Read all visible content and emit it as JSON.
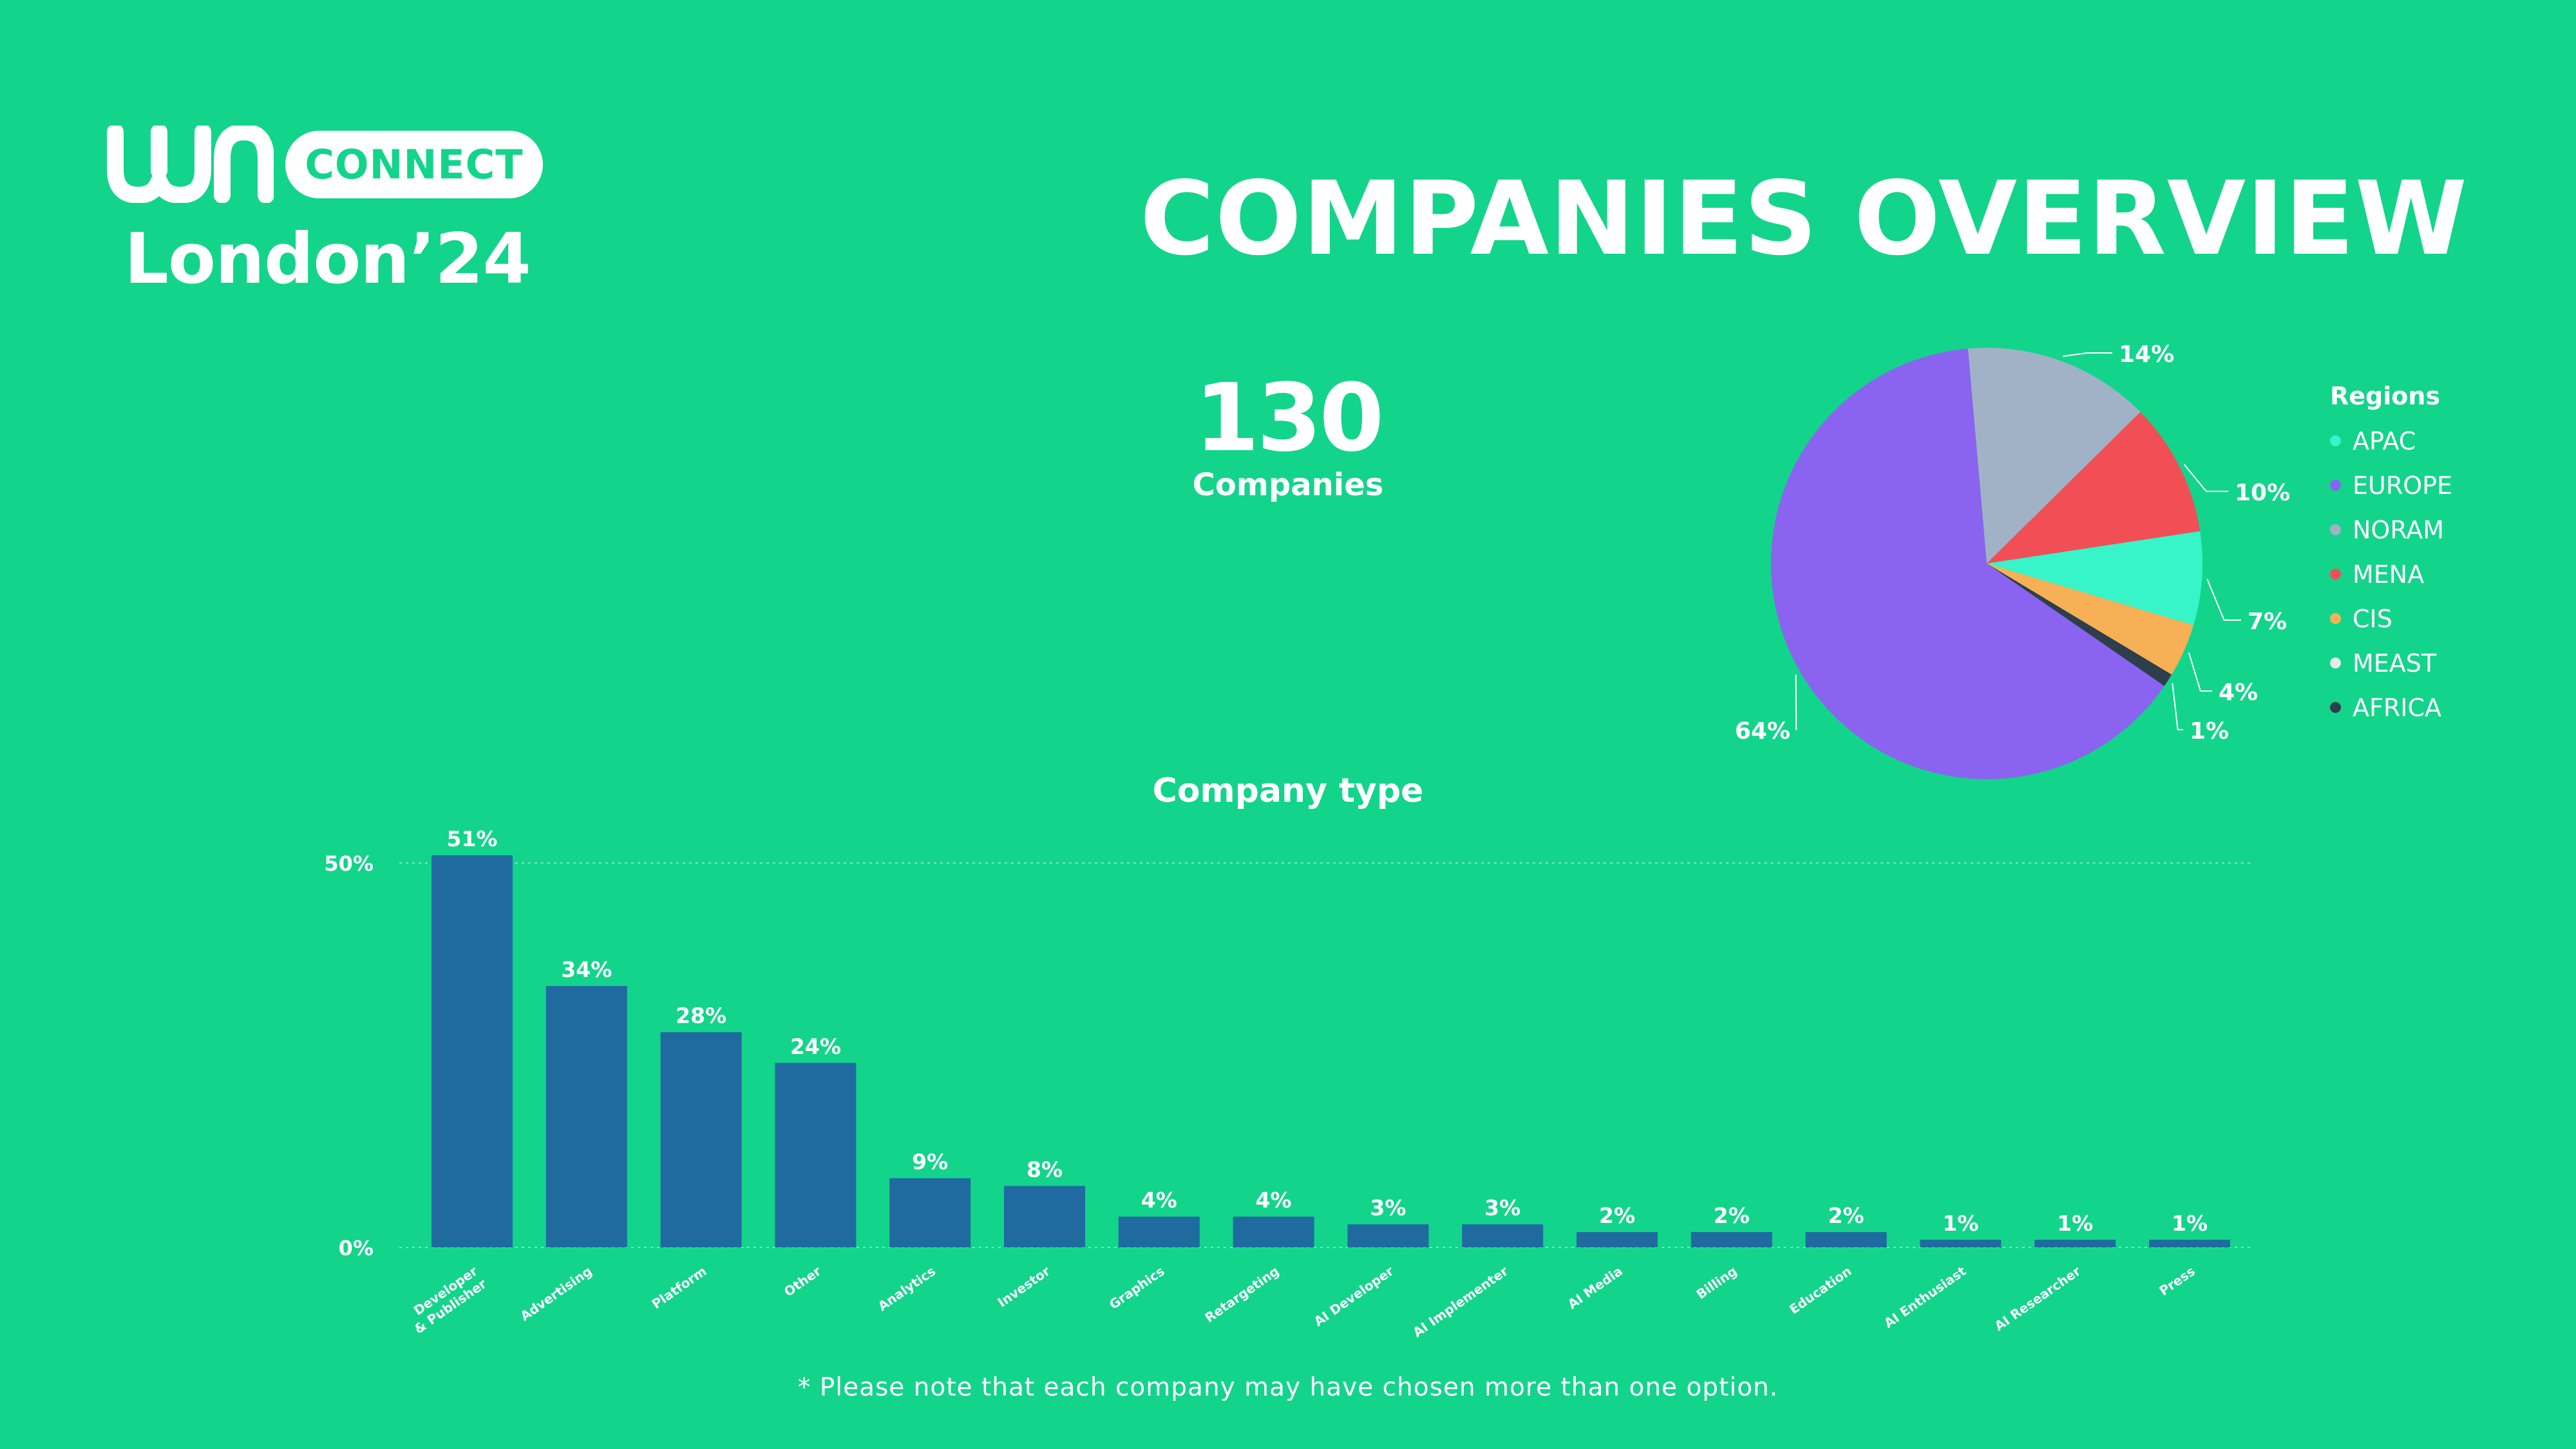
{
  "brand": {
    "logo_text": "WN",
    "pill_label": "CONNECT",
    "subtitle": "London’24"
  },
  "header": {
    "title": "COMPANIES OVERVIEW"
  },
  "kpi": {
    "value": "130",
    "label": "Companies"
  },
  "footnote": "* Please note that each company may have chosen more than one option.",
  "colors": {
    "background": "#13D48B",
    "bar": "#1F6BA0",
    "APAC": "#37F5C8",
    "EUROPE": "#8A63F0",
    "NORAM": "#A1B2C7",
    "MENA": "#F24E56",
    "CIS": "#F7B055",
    "MEAST": "#E6EBEE",
    "AFRICA": "#2E3E4C"
  },
  "chart_data": [
    {
      "type": "pie",
      "legend_title": "Regions",
      "legend_position": "right",
      "slices": [
        {
          "name": "APAC",
          "value": 7,
          "label": "7%"
        },
        {
          "name": "EUROPE",
          "value": 64,
          "label": "64%"
        },
        {
          "name": "NORAM",
          "value": 14,
          "label": "14%"
        },
        {
          "name": "MENA",
          "value": 10,
          "label": "10%"
        },
        {
          "name": "CIS",
          "value": 4,
          "label": "4%"
        },
        {
          "name": "MEAST",
          "value": 0,
          "label": ""
        },
        {
          "name": "AFRICA",
          "value": 1,
          "label": "1%"
        }
      ]
    },
    {
      "type": "bar",
      "title": "Company type",
      "categories": [
        "Developer\n& Publisher",
        "Advertising",
        "Platform",
        "Other",
        "Analytics",
        "Investor",
        "Graphics",
        "Retargeting",
        "AI Developer",
        "AI Implementer",
        "AI Media",
        "Billing",
        "Education",
        "AI Enthusiast",
        "AI Researcher",
        "Press"
      ],
      "values": [
        51,
        34,
        28,
        24,
        9,
        8,
        4,
        4,
        3,
        3,
        2,
        2,
        2,
        1,
        1,
        1
      ],
      "value_labels": [
        "51%",
        "34%",
        "28%",
        "24%",
        "9%",
        "8%",
        "4%",
        "4%",
        "3%",
        "3%",
        "2%",
        "2%",
        "2%",
        "1%",
        "1%",
        "1%"
      ],
      "y_ticks": [
        "0%",
        "50%"
      ],
      "ylim": [
        0,
        50
      ],
      "grid": true
    }
  ]
}
